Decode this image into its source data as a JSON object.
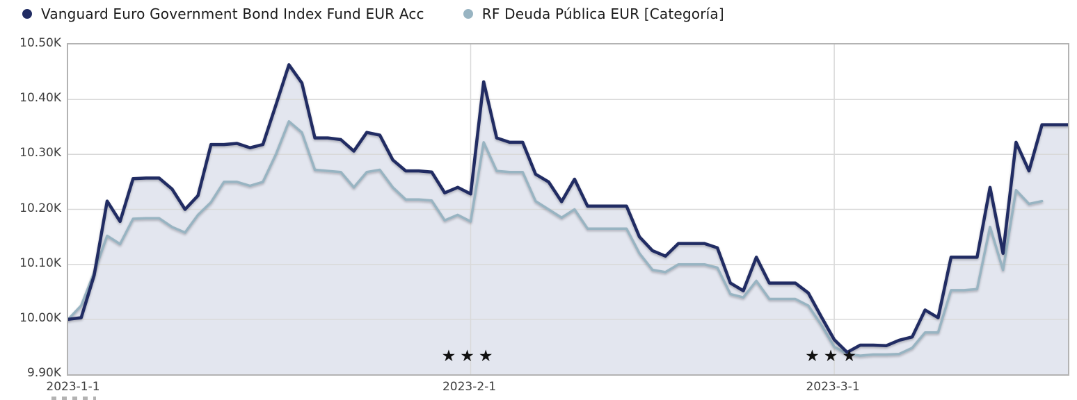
{
  "legend": [
    {
      "id": "vanguard",
      "label": "Vanguard Euro Government Bond Index Fund EUR Acc",
      "color": "#212c63"
    },
    {
      "id": "categoria",
      "label": "RF Deuda Pública EUR [Categoría]",
      "color": "#98b4c2"
    }
  ],
  "chart_data": {
    "type": "area",
    "title": "",
    "xlabel": "",
    "ylabel": "",
    "ylim": [
      9.9,
      10.5
    ],
    "x_total_days": 77,
    "grid": true,
    "grid_color": "#d9d9d9",
    "legend_position": "top-left",
    "y_ticks": [
      {
        "label": "10.50K",
        "value": 10.5
      },
      {
        "label": "10.40K",
        "value": 10.4
      },
      {
        "label": "10.30K",
        "value": 10.3
      },
      {
        "label": "10.20K",
        "value": 10.2
      },
      {
        "label": "10.10K",
        "value": 10.1
      },
      {
        "label": "10.00K",
        "value": 10.0
      },
      {
        "label": "9.90K",
        "value": 9.9
      }
    ],
    "x_ticks": [
      {
        "label": "2023-1-1",
        "day": 0
      },
      {
        "label": "2023-2-1",
        "day": 31
      },
      {
        "label": "2023-3-1",
        "day": 59
      }
    ],
    "star_groups": [
      {
        "day": 31,
        "glyph": "★★★"
      },
      {
        "day": 59,
        "glyph": "★★★"
      }
    ],
    "series": [
      {
        "id": "vanguard",
        "name": "Vanguard Euro Government Bond Index Fund EUR Acc",
        "color": "#212c63",
        "fill": "#e3e6ef",
        "width": 4.5,
        "values": [
          10.0,
          10.003,
          10.08,
          10.215,
          10.178,
          10.256,
          10.257,
          10.257,
          10.237,
          10.2,
          10.225,
          10.318,
          10.318,
          10.32,
          10.312,
          10.318,
          10.39,
          10.463,
          10.43,
          10.33,
          10.33,
          10.327,
          10.306,
          10.34,
          10.335,
          10.29,
          10.27,
          10.27,
          10.268,
          10.23,
          10.24,
          10.228,
          10.432,
          10.33,
          10.322,
          10.322,
          10.264,
          10.25,
          10.214,
          10.255,
          10.206,
          10.206,
          10.206,
          10.206,
          10.15,
          10.125,
          10.115,
          10.138,
          10.138,
          10.138,
          10.13,
          10.066,
          10.052,
          10.113,
          10.066,
          10.066,
          10.066,
          10.048,
          10.005,
          9.963,
          9.94,
          9.953,
          9.953,
          9.952,
          9.962,
          9.968,
          10.017,
          10.003,
          10.113,
          10.113,
          10.113,
          10.24,
          10.12,
          10.322,
          10.27,
          10.354,
          10.354,
          10.354
        ]
      },
      {
        "id": "categoria",
        "name": "RF Deuda Pública EUR [Categoría]",
        "color": "#98b4c2",
        "fill": "#e3e6ef",
        "width": 3.5,
        "values": [
          10.0,
          10.025,
          10.085,
          10.152,
          10.137,
          10.183,
          10.184,
          10.184,
          10.168,
          10.158,
          10.19,
          10.213,
          10.25,
          10.25,
          10.243,
          10.25,
          10.3,
          10.36,
          10.34,
          10.272,
          10.27,
          10.268,
          10.24,
          10.268,
          10.272,
          10.24,
          10.218,
          10.218,
          10.216,
          10.18,
          10.19,
          10.178,
          10.322,
          10.27,
          10.268,
          10.268,
          10.215,
          10.2,
          10.185,
          10.2,
          10.165,
          10.165,
          10.165,
          10.165,
          10.12,
          10.09,
          10.086,
          10.1,
          10.1,
          10.1,
          10.094,
          10.046,
          10.04,
          10.07,
          10.037,
          10.037,
          10.037,
          10.025,
          9.99,
          9.95,
          9.937,
          9.934,
          9.936,
          9.936,
          9.937,
          9.948,
          9.976,
          9.976,
          10.053,
          10.053,
          10.055,
          10.168,
          10.09,
          10.235,
          10.21,
          10.215
        ]
      }
    ]
  }
}
